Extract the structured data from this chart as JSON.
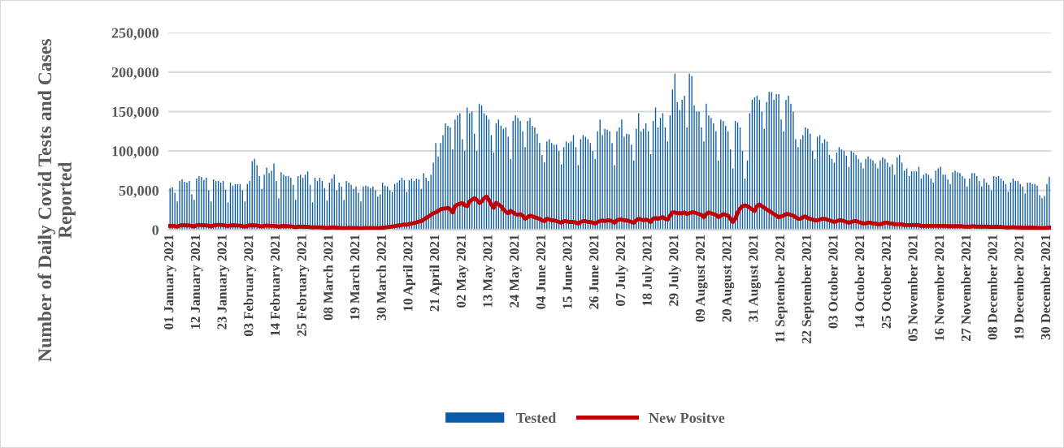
{
  "chart_data": {
    "type": "bar",
    "ylabel": "Number of Daily Covid Tests and Cases Reported",
    "categories": [
      "01 January 2021",
      null,
      null,
      null,
      null,
      null,
      null,
      null,
      null,
      null,
      null,
      "12 January 2021",
      null,
      null,
      null,
      null,
      null,
      null,
      null,
      null,
      null,
      null,
      "23 January 2021",
      null,
      null,
      null,
      null,
      null,
      null,
      null,
      null,
      null,
      null,
      "03 February 2021",
      null,
      null,
      null,
      null,
      null,
      null,
      null,
      null,
      null,
      null,
      "14 February 2021",
      null,
      null,
      null,
      null,
      null,
      null,
      null,
      null,
      null,
      null,
      "25 February 2021",
      null,
      null,
      null,
      null,
      null,
      null,
      null,
      null,
      null,
      null,
      "08 March 2021",
      null,
      null,
      null,
      null,
      null,
      null,
      null,
      null,
      null,
      null,
      "19 March 2021",
      null,
      null,
      null,
      null,
      null,
      null,
      null,
      null,
      null,
      null,
      "30 March 2021",
      null,
      null,
      null,
      null,
      null,
      null,
      null,
      null,
      null,
      null,
      "10 April 2021",
      null,
      null,
      null,
      null,
      null,
      null,
      null,
      null,
      null,
      null,
      "21 April 2021",
      null,
      null,
      null,
      null,
      null,
      null,
      null,
      null,
      null,
      null,
      "02 May 2021",
      null,
      null,
      null,
      null,
      null,
      null,
      null,
      null,
      null,
      null,
      "13 May 2021",
      null,
      null,
      null,
      null,
      null,
      null,
      null,
      null,
      null,
      null,
      "24 May 2021",
      null,
      null,
      null,
      null,
      null,
      null,
      null,
      null,
      null,
      null,
      "04 June 2021",
      null,
      null,
      null,
      null,
      null,
      null,
      null,
      null,
      null,
      null,
      "15 June 2021",
      null,
      null,
      null,
      null,
      null,
      null,
      null,
      null,
      null,
      null,
      "26 June 2021",
      null,
      null,
      null,
      null,
      null,
      null,
      null,
      null,
      null,
      null,
      "07 July 2021",
      null,
      null,
      null,
      null,
      null,
      null,
      null,
      null,
      null,
      null,
      "18 July 2021",
      null,
      null,
      null,
      null,
      null,
      null,
      null,
      null,
      null,
      null,
      "29 July 2021",
      null,
      null,
      null,
      null,
      null,
      null,
      null,
      null,
      null,
      null,
      "09 August 2021",
      null,
      null,
      null,
      null,
      null,
      null,
      null,
      null,
      null,
      null,
      "20 August 2021",
      null,
      null,
      null,
      null,
      null,
      null,
      null,
      null,
      null,
      null,
      "31 August 2021",
      null,
      null,
      null,
      null,
      null,
      null,
      null,
      null,
      null,
      null,
      "11 September 2021",
      null,
      null,
      null,
      null,
      null,
      null,
      null,
      null,
      null,
      null,
      "22 September 2021",
      null,
      null,
      null,
      null,
      null,
      null,
      null,
      null,
      null,
      null,
      "03 October 2021",
      null,
      null,
      null,
      null,
      null,
      null,
      null,
      null,
      null,
      null,
      "14 October 2021",
      null,
      null,
      null,
      null,
      null,
      null,
      null,
      null,
      null,
      null,
      "25 October 2021",
      null,
      null,
      null,
      null,
      null,
      null,
      null,
      null,
      null,
      null,
      "05 November 2021",
      null,
      null,
      null,
      null,
      null,
      null,
      null,
      null,
      null,
      null,
      "16 November 2021",
      null,
      null,
      null,
      null,
      null,
      null,
      null,
      null,
      null,
      null,
      "27 November 2021",
      null,
      null,
      null,
      null,
      null,
      null,
      null,
      null,
      null,
      null,
      "08 December 2021",
      null,
      null,
      null,
      null,
      null,
      null,
      null,
      null,
      null,
      null,
      "19 December 2021",
      null,
      null,
      null,
      null,
      null,
      null,
      null,
      null,
      null,
      null,
      "30 December 2021",
      null
    ],
    "series": [
      {
        "name": "Tested",
        "color": "#0b5aa6",
        "values": [
          53000,
          54000,
          47000,
          36000,
          62000,
          64000,
          61000,
          60000,
          62000,
          45000,
          38000,
          65000,
          68000,
          67000,
          63000,
          66000,
          50000,
          36000,
          64000,
          62000,
          62000,
          60000,
          62000,
          51000,
          35000,
          60000,
          56000,
          58000,
          58000,
          58000,
          50000,
          36000,
          58000,
          62000,
          87000,
          90000,
          82000,
          68000,
          52000,
          70000,
          79000,
          72000,
          75000,
          84000,
          62000,
          40000,
          73000,
          70000,
          68000,
          68000,
          66000,
          57000,
          38000,
          68000,
          70000,
          66000,
          70000,
          74000,
          57000,
          35000,
          66000,
          62000,
          66000,
          62000,
          53000,
          37000,
          60000,
          65000,
          70000,
          50000,
          60000,
          55000,
          38000,
          62000,
          60000,
          57000,
          52000,
          55000,
          47000,
          36000,
          55000,
          56000,
          55000,
          53000,
          55000,
          50000,
          42000,
          45000,
          60000,
          56000,
          55000,
          50000,
          48000,
          58000,
          60000,
          63000,
          66000,
          63000,
          48000,
          63000,
          65000,
          62000,
          65000,
          64000,
          52000,
          72000,
          66000,
          62000,
          70000,
          85000,
          110000,
          93000,
          110000,
          120000,
          135000,
          132000,
          130000,
          102000,
          140000,
          145000,
          148000,
          115000,
          100000,
          155000,
          148000,
          150000,
          122000,
          100000,
          160000,
          158000,
          148000,
          145000,
          140000,
          120000,
          98000,
          135000,
          140000,
          132000,
          128000,
          130000,
          118000,
          90000,
          138000,
          145000,
          142000,
          138000,
          125000,
          105000,
          138000,
          142000,
          132000,
          130000,
          122000,
          110000,
          95000,
          86000,
          112000,
          115000,
          110000,
          108000,
          108000,
          100000,
          83000,
          105000,
          112000,
          110000,
          112000,
          120000,
          105000,
          82000,
          115000,
          120000,
          118000,
          115000,
          110000,
          100000,
          90000,
          125000,
          140000,
          120000,
          128000,
          127000,
          125000,
          110000,
          82000,
          125000,
          130000,
          140000,
          118000,
          122000,
          121000,
          108000,
          88000,
          128000,
          148000,
          125000,
          128000,
          135000,
          125000,
          96000,
          138000,
          155000,
          130000,
          142000,
          148000,
          130000,
          112000,
          145000,
          178000,
          198000,
          162000,
          152000,
          165000,
          170000,
          130000,
          198000,
          195000,
          158000,
          150000,
          150000,
          130000,
          112000,
          160000,
          145000,
          142000,
          135000,
          125000,
          88000,
          140000,
          138000,
          132000,
          125000,
          102000,
          78000,
          138000,
          136000,
          130000,
          100000,
          65000,
          88000,
          148000,
          165000,
          168000,
          170000,
          165000,
          150000,
          128000,
          162000,
          175000,
          175000,
          165000,
          172000,
          172000,
          140000,
          125000,
          165000,
          170000,
          160000,
          150000,
          115000,
          105000,
          115000,
          120000,
          130000,
          128000,
          122000,
          100000,
          90000,
          118000,
          120000,
          110000,
          115000,
          112000,
          95000,
          90000,
          85000,
          98000,
          105000,
          102000,
          100000,
          94000,
          80000,
          100000,
          98000,
          95000,
          90000,
          85000,
          78000,
          90000,
          93000,
          90000,
          88000,
          84000,
          78000,
          88000,
          92000,
          90000,
          85000,
          80000,
          83000,
          70000,
          92000,
          95000,
          85000,
          75000,
          78000,
          68000,
          74000,
          74000,
          74000,
          80000,
          65000,
          70000,
          72000,
          70000,
          65000,
          60000,
          75000,
          78000,
          80000,
          70000,
          70000,
          64000,
          58000,
          73000,
          75000,
          73000,
          72000,
          68000,
          65000,
          55000,
          65000,
          72000,
          72000,
          68000,
          62000,
          55000,
          65000,
          60000,
          57000,
          50000,
          68000,
          67000,
          68000,
          65000,
          62000,
          58000,
          48000,
          60000,
          65000,
          62000,
          62000,
          58000,
          55000,
          46000,
          60000,
          60000,
          58000,
          58000,
          56000,
          44000,
          40000,
          43000,
          58000,
          67000
        ]
      },
      {
        "name": "New Positve",
        "type": "line",
        "color": "#c00000",
        "values": [
          5000,
          5200,
          4800,
          4000,
          5500,
          6000,
          5800,
          5600,
          5400,
          5000,
          4200,
          5800,
          6200,
          6000,
          5800,
          5700,
          5200,
          4300,
          5600,
          6000,
          6200,
          6200,
          6000,
          5500,
          4800,
          5600,
          5800,
          5600,
          5400,
          5200,
          4600,
          4000,
          5000,
          5600,
          5800,
          5600,
          5400,
          4800,
          4200,
          5000,
          5400,
          5200,
          5000,
          5000,
          4600,
          3800,
          4600,
          4800,
          4600,
          4600,
          4400,
          4000,
          3400,
          4000,
          4200,
          4000,
          3800,
          3800,
          3400,
          3000,
          3400,
          3200,
          3200,
          3000,
          2800,
          2400,
          2800,
          3000,
          3000,
          2800,
          2600,
          2400,
          2000,
          2400,
          2600,
          2400,
          2400,
          2200,
          2200,
          1800,
          2200,
          2400,
          2400,
          2400,
          2400,
          2400,
          2200,
          2400,
          2800,
          3000,
          3400,
          3800,
          4200,
          4600,
          5200,
          5800,
          6200,
          6800,
          6400,
          7200,
          8000,
          8600,
          9400,
          10400,
          11000,
          13000,
          15000,
          17000,
          19000,
          21000,
          22000,
          24000,
          26000,
          27000,
          27000,
          28000,
          26000,
          22000,
          30000,
          32000,
          33000,
          34000,
          31000,
          30000,
          36000,
          38000,
          40000,
          38000,
          34000,
          36000,
          40000,
          42000,
          38000,
          32000,
          28000,
          34000,
          32000,
          30000,
          26000,
          23000,
          21000,
          24000,
          22000,
          20000,
          19000,
          20000,
          18000,
          14000,
          16000,
          18000,
          17000,
          16000,
          15000,
          14000,
          12000,
          11000,
          14000,
          13000,
          12000,
          12000,
          11000,
          10000,
          9000,
          11000,
          11000,
          10000,
          10000,
          10000,
          9000,
          8000,
          10000,
          11000,
          11000,
          10000,
          10000,
          9000,
          8000,
          10000,
          11000,
          12000,
          11000,
          12000,
          12000,
          11000,
          9000,
          12000,
          13000,
          13000,
          12000,
          12000,
          11000,
          10000,
          9000,
          12000,
          14000,
          13000,
          12000,
          13000,
          12000,
          10000,
          14000,
          15000,
          14000,
          15000,
          16000,
          14000,
          13000,
          18000,
          22000,
          22000,
          21000,
          21000,
          21000,
          22000,
          20000,
          21000,
          22000,
          22000,
          21000,
          20000,
          19000,
          16000,
          20000,
          22000,
          21000,
          20000,
          19000,
          16000,
          18000,
          20000,
          19000,
          18000,
          14000,
          10000,
          14000,
          22000,
          27000,
          30000,
          31000,
          30000,
          28000,
          26000,
          24000,
          30000,
          32000,
          30000,
          28000,
          26000,
          24000,
          22000,
          20000,
          18000,
          16000,
          17000,
          18000,
          20000,
          20000,
          19000,
          18000,
          16000,
          14000,
          14000,
          16000,
          17000,
          15000,
          14000,
          13000,
          12000,
          12000,
          13000,
          14000,
          14000,
          13000,
          12000,
          11000,
          10000,
          11000,
          12000,
          12000,
          11000,
          10000,
          9000,
          10000,
          11000,
          11000,
          10000,
          9000,
          8000,
          8000,
          9000,
          9000,
          8000,
          8000,
          7000,
          7000,
          8000,
          9000,
          9000,
          8000,
          8000,
          7000,
          7000,
          7000,
          7000,
          6000,
          6000,
          6000,
          6000,
          6000,
          6000,
          6000,
          5000,
          5000,
          5000,
          5000,
          5000,
          5000,
          5000,
          5000,
          5000,
          5000,
          5000,
          4500,
          4500,
          4500,
          4500,
          4500,
          4500,
          4500,
          4000,
          4000,
          4000,
          4500,
          4500,
          4000,
          4000,
          4000,
          4000,
          4000,
          3800,
          3600,
          3800,
          4000,
          3800,
          3600,
          3400,
          3200,
          3000,
          3200,
          3400,
          3200,
          3000,
          3000,
          2800,
          2600,
          2800,
          3000,
          2800,
          2800,
          2600,
          2400,
          2200,
          2400,
          2600,
          2800
        ]
      }
    ],
    "ylim": [
      0,
      250000
    ],
    "yticks": [
      0,
      {
        "value": 50000,
        "label": "50,000"
      },
      {
        "value": 100000,
        "label": "100,000"
      },
      {
        "value": 150000,
        "label": "150,000"
      },
      {
        "value": 200000,
        "label": "200,000"
      },
      {
        "value": 250000,
        "label": "250,000"
      }
    ],
    "grid": "y",
    "legend": "bottom",
    "line_style": "solid",
    "marker": "none"
  }
}
